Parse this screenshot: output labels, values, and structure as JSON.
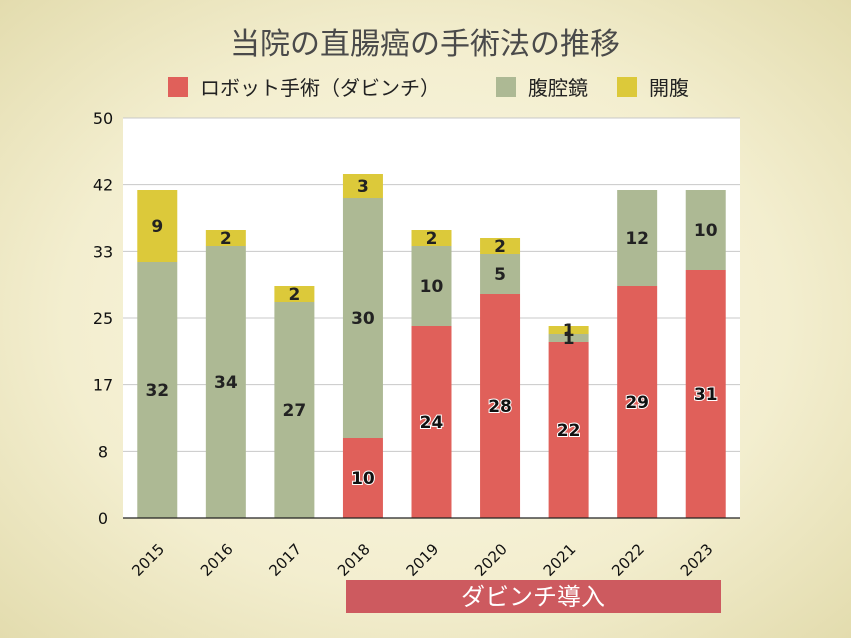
{
  "chart_data": {
    "type": "bar",
    "stacked": true,
    "title": "当院の直腸癌の手術法の推移",
    "categories": [
      "2015",
      "2016",
      "2017",
      "2018",
      "2019",
      "2020",
      "2021",
      "2022",
      "2023"
    ],
    "series": [
      {
        "name": "ロボット手術（ダビンチ）",
        "color": "#e0605a",
        "values": [
          0,
          0,
          0,
          10,
          24,
          28,
          22,
          29,
          31
        ],
        "labels": [
          "",
          "",
          "",
          "10",
          "24",
          "28",
          "22",
          "29",
          "31"
        ]
      },
      {
        "name": "腹腔鏡",
        "color": "#adb994",
        "values": [
          32,
          34,
          27,
          30,
          10,
          5,
          1,
          12,
          10
        ],
        "labels": [
          "32",
          "34",
          "27",
          "30",
          "10",
          "5",
          "1",
          "12",
          "10"
        ]
      },
      {
        "name": "開腹",
        "color": "#dcc93a",
        "values": [
          9,
          2,
          2,
          3,
          2,
          2,
          1,
          0,
          0
        ],
        "labels": [
          "9",
          "2",
          "2",
          "3",
          "2",
          "2",
          "1",
          "",
          ""
        ]
      }
    ],
    "yticks": [
      "0",
      "8",
      "17",
      "25",
      "33",
      "42",
      "50"
    ],
    "ylim": [
      0,
      50
    ],
    "legend_position": "top",
    "grid": true
  },
  "banner": {
    "label": "ダビンチ導入",
    "color": "#cd5a5f"
  }
}
